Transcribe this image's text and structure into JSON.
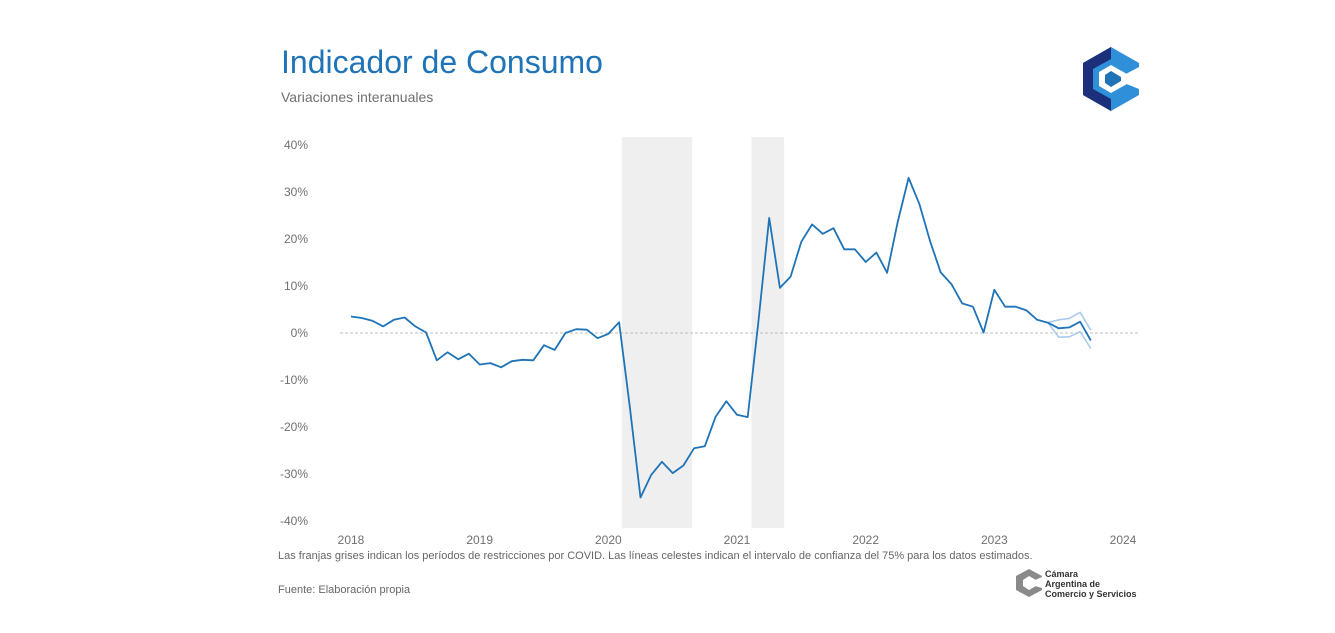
{
  "header": {
    "title": "Indicador de Consumo",
    "subtitle": "Variaciones interanuales"
  },
  "footer": {
    "note": "Las franjas grises indican los períodos de restricciones por COVID. Las líneas celestes indican el intervalo de confianza del 75% para los datos estimados.",
    "source": "Fuente: Elaboración propia",
    "org_line1": "Cámara",
    "org_line2": "Argentina de",
    "org_line3": "Comercio y Servicios"
  },
  "colors": {
    "main_line": "#1f73b7",
    "ci_line": "#a9cbea",
    "shade": "#efefef",
    "zero_line": "#bdbdbd",
    "logo_dark": "#1c2f7a",
    "logo_light": "#2f8fd8"
  },
  "chart_data": {
    "type": "line",
    "title": "Indicador de Consumo",
    "subtitle": "Variaciones interanuales",
    "xlabel": "",
    "ylabel": "",
    "y_unit": "%",
    "xlim": [
      "2018-01",
      "2024-01"
    ],
    "ylim": [
      -40,
      40
    ],
    "yticks": [
      -40,
      -30,
      -20,
      -10,
      0,
      10,
      20,
      30,
      40
    ],
    "ytick_labels": [
      "-40%",
      "-30%",
      "-20%",
      "-10%",
      "0%",
      "10%",
      "20%",
      "30%",
      "40%"
    ],
    "xticks": [
      "2018",
      "2019",
      "2020",
      "2021",
      "2022",
      "2023",
      "2024"
    ],
    "grid": false,
    "zero_line": true,
    "shaded_periods": [
      {
        "start": "2020-02-09",
        "end": "2020-08-26"
      },
      {
        "start": "2021-02-12",
        "end": "2021-05-13"
      }
    ],
    "series": [
      {
        "values_by_month": [
          [
            "2018-01",
            3.5
          ],
          [
            "2018-02",
            3.2
          ],
          [
            "2018-03",
            2.6
          ],
          [
            "2018-04",
            1.4
          ],
          [
            "2018-05",
            2.8
          ],
          [
            "2018-06",
            3.3
          ],
          [
            "2018-07",
            1.4
          ],
          [
            "2018-08",
            0.1
          ],
          [
            "2018-09",
            -5.8
          ],
          [
            "2018-10",
            -4.1
          ],
          [
            "2018-11",
            -5.6
          ],
          [
            "2018-12",
            -4.4
          ],
          [
            "2019-01",
            -6.7
          ],
          [
            "2019-02",
            -6.4
          ],
          [
            "2019-03",
            -7.3
          ],
          [
            "2019-04",
            -6.0
          ],
          [
            "2019-05",
            -5.7
          ],
          [
            "2019-06",
            -5.8
          ],
          [
            "2019-07",
            -2.6
          ],
          [
            "2019-08",
            -3.6
          ],
          [
            "2019-09",
            0.0
          ],
          [
            "2019-10",
            0.8
          ],
          [
            "2019-11",
            0.7
          ],
          [
            "2019-12",
            -1.1
          ],
          [
            "2020-01",
            -0.2
          ],
          [
            "2020-02",
            2.3
          ],
          [
            "2020-03",
            -15.7
          ],
          [
            "2020-04",
            -35.0
          ],
          [
            "2020-05",
            -30.2
          ],
          [
            "2020-06",
            -27.4
          ],
          [
            "2020-07",
            -29.8
          ],
          [
            "2020-08",
            -28.2
          ],
          [
            "2020-09",
            -24.5
          ],
          [
            "2020-10",
            -24.1
          ],
          [
            "2020-11",
            -17.8
          ],
          [
            "2020-12",
            -14.5
          ],
          [
            "2021-01",
            -17.4
          ],
          [
            "2021-02",
            -17.9
          ],
          [
            "2021-03",
            2.4
          ],
          [
            "2021-04",
            24.5
          ],
          [
            "2021-05",
            9.6
          ],
          [
            "2021-06",
            12.0
          ],
          [
            "2021-07",
            19.4
          ],
          [
            "2021-08",
            23.1
          ],
          [
            "2021-09",
            21.1
          ],
          [
            "2021-10",
            22.3
          ],
          [
            "2021-11",
            17.8
          ],
          [
            "2021-12",
            17.8
          ],
          [
            "2022-01",
            15.1
          ],
          [
            "2022-02",
            17.1
          ],
          [
            "2022-03",
            12.8
          ],
          [
            "2022-04",
            23.7
          ],
          [
            "2022-05",
            33.0
          ],
          [
            "2022-06",
            27.5
          ],
          [
            "2022-07",
            19.6
          ],
          [
            "2022-08",
            12.9
          ],
          [
            "2022-09",
            10.4
          ],
          [
            "2022-10",
            6.3
          ],
          [
            "2022-11",
            5.6
          ],
          [
            "2022-12",
            0.1
          ],
          [
            "2023-01",
            9.2
          ],
          [
            "2023-02",
            5.6
          ],
          [
            "2023-03",
            5.6
          ],
          [
            "2023-04",
            4.8
          ],
          [
            "2023-05",
            2.8
          ],
          [
            "2023-06",
            2.2
          ],
          [
            "2023-07",
            1.0
          ],
          [
            "2023-08",
            1.2
          ],
          [
            "2023-09",
            2.4
          ],
          [
            "2023-10",
            -1.6
          ]
        ],
        "color": "#1f73b7"
      },
      {
        "values_by_month": [
          [
            "2023-06",
            2.2
          ],
          [
            "2023-07",
            2.8
          ],
          [
            "2023-08",
            3.1
          ],
          [
            "2023-09",
            4.4
          ],
          [
            "2023-10",
            0.6
          ]
        ],
        "color": "#a9cbea"
      },
      {
        "values_by_month": [
          [
            "2023-06",
            2.2
          ],
          [
            "2023-07",
            -0.9
          ],
          [
            "2023-08",
            -0.8
          ],
          [
            "2023-09",
            0.3
          ],
          [
            "2023-10",
            -3.3
          ]
        ],
        "color": "#a9cbea"
      }
    ]
  }
}
